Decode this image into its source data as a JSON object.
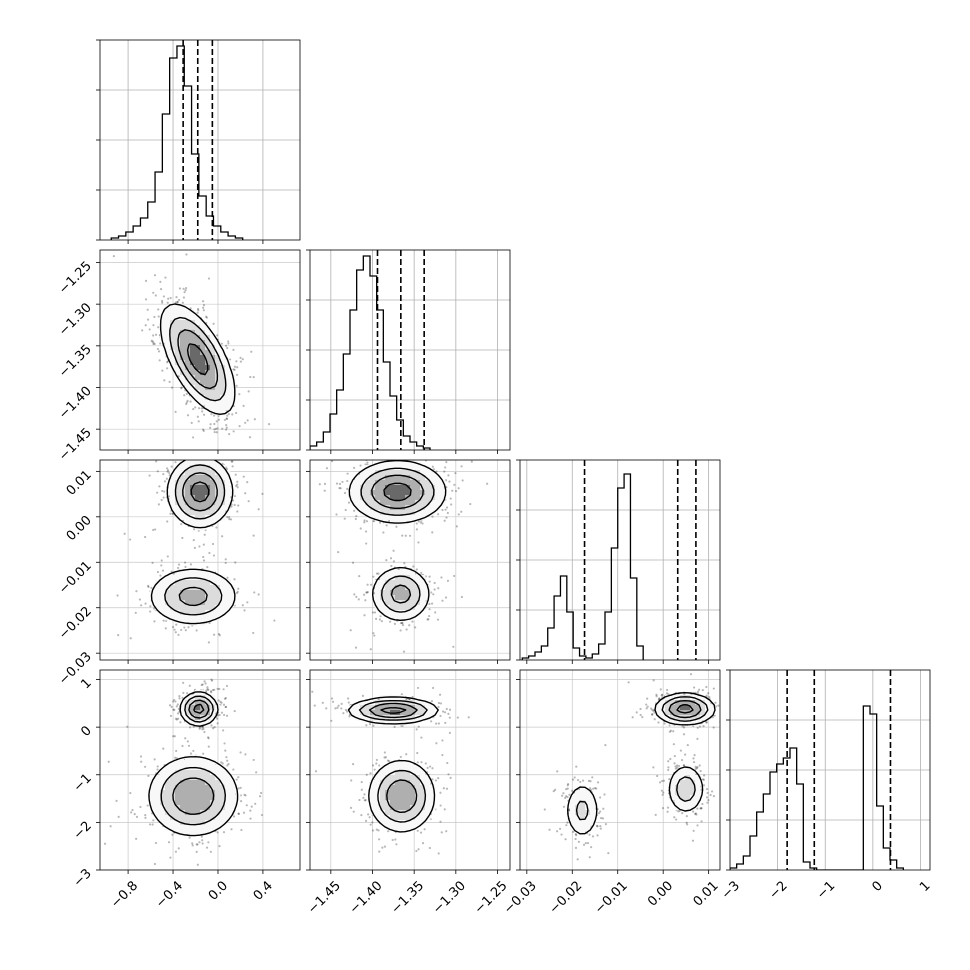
{
  "chart_data": {
    "type": "corner",
    "parameters": [
      {
        "name": "",
        "range": [
          -1.05,
          0.73
        ],
        "ticks": [
          -0.8,
          -0.4,
          0.0,
          0.4
        ],
        "tick_labels": [
          "−0.8",
          "−0.4",
          "0.0",
          "0.4"
        ]
      },
      {
        "name": "",
        "range": [
          -1.475,
          -1.235
        ],
        "ticks": [
          -1.45,
          -1.4,
          -1.35,
          -1.3,
          -1.25
        ],
        "tick_labels": [
          "−1.45",
          "−1.40",
          "−1.35",
          "−1.30",
          "−1.25"
        ]
      },
      {
        "name": "",
        "range": [
          -0.0315,
          0.0125
        ],
        "ticks": [
          -0.03,
          -0.02,
          -0.01,
          0.0,
          0.01
        ],
        "tick_labels": [
          "−0.03",
          "−0.02",
          "−0.01",
          "0.00",
          "0.01"
        ]
      },
      {
        "name": "",
        "range": [
          -3.0,
          1.2
        ],
        "ticks": [
          -3,
          -2,
          -1,
          0,
          1
        ],
        "tick_labels": [
          "−3",
          "−2",
          "−1",
          "0",
          "1"
        ]
      }
    ],
    "histograms": [
      {
        "param": 0,
        "edges_start": -0.95,
        "bin_width": 0.065,
        "counts": [
          0.01,
          0.02,
          0.04,
          0.07,
          0.11,
          0.19,
          0.34,
          0.63,
          0.91,
          0.97,
          0.77,
          0.43,
          0.22,
          0.12,
          0.07,
          0.04,
          0.02,
          0.01
        ],
        "quantiles": [
          -0.31,
          -0.18,
          -0.05
        ]
      },
      {
        "param": 1,
        "edges_start": -1.475,
        "bin_width": 0.008,
        "counts": [
          0.02,
          0.04,
          0.09,
          0.18,
          0.3,
          0.48,
          0.7,
          0.9,
          0.97,
          0.87,
          0.7,
          0.44,
          0.27,
          0.15,
          0.07,
          0.04,
          0.02,
          0.01
        ],
        "quantiles": [
          -1.394,
          -1.366,
          -1.338
        ]
      },
      {
        "param": 2,
        "edges_start": -0.031,
        "bin_width": 0.0014,
        "counts": [
          0.01,
          0.02,
          0.04,
          0.07,
          0.16,
          0.32,
          0.42,
          0.24,
          0.06,
          0.02,
          0.01,
          0.03,
          0.08,
          0.24,
          0.56,
          0.86,
          0.93,
          0.41,
          0.07
        ],
        "quantiles": [
          -0.0173,
          0.0032,
          0.0072
        ]
      },
      {
        "param": 3,
        "edges_start": -3.0,
        "bin_width": 0.14,
        "counts": [
          0.01,
          0.03,
          0.07,
          0.17,
          0.29,
          0.38,
          0.49,
          0.53,
          0.56,
          0.61,
          0.43,
          0.04,
          0.01,
          0.0,
          0.0,
          0.0,
          0.0,
          0.0,
          0.0,
          0.0,
          0.82,
          0.78,
          0.32,
          0.11,
          0.05,
          0.01
        ],
        "quantiles": [
          -1.8,
          -1.23,
          0.37
        ]
      }
    ],
    "density_2d": [
      {
        "x_param": 0,
        "y_param": 1,
        "modes": [
          {
            "cx": -0.18,
            "cy": -1.366,
            "sx": 0.16,
            "sy": 0.032,
            "rho": -0.62,
            "weight": 1.0
          }
        ]
      },
      {
        "x_param": 0,
        "y_param": 2,
        "modes": [
          {
            "cx": -0.16,
            "cy": 0.0055,
            "sx": 0.14,
            "sy": 0.0038,
            "rho": 0.0,
            "weight": 0.6
          },
          {
            "cx": -0.22,
            "cy": -0.0175,
            "sx": 0.2,
            "sy": 0.0032,
            "rho": 0.0,
            "weight": 0.4
          }
        ]
      },
      {
        "x_param": 0,
        "y_param": 3,
        "modes": [
          {
            "cx": -0.17,
            "cy": 0.38,
            "sx": 0.08,
            "sy": 0.17,
            "rho": 0.0,
            "weight": 0.55
          },
          {
            "cx": -0.22,
            "cy": -1.45,
            "sx": 0.2,
            "sy": 0.42,
            "rho": 0.0,
            "weight": 0.45
          }
        ]
      },
      {
        "x_param": 1,
        "y_param": 2,
        "modes": [
          {
            "cx": -1.37,
            "cy": 0.0055,
            "sx": 0.028,
            "sy": 0.0033,
            "rho": 0.0,
            "weight": 0.6
          },
          {
            "cx": -1.366,
            "cy": -0.017,
            "sx": 0.018,
            "sy": 0.0031,
            "rho": 0.0,
            "weight": 0.4
          }
        ]
      },
      {
        "x_param": 1,
        "y_param": 3,
        "modes": [
          {
            "cx": -1.375,
            "cy": 0.35,
            "sx": 0.026,
            "sy": 0.13,
            "rho": 0.0,
            "weight": 0.55
          },
          {
            "cx": -1.365,
            "cy": -1.45,
            "sx": 0.02,
            "sy": 0.38,
            "rho": 0.0,
            "weight": 0.45
          }
        ]
      },
      {
        "x_param": 2,
        "y_param": 3,
        "modes": [
          {
            "cx": 0.0048,
            "cy": 0.38,
            "sx": 0.0032,
            "sy": 0.16,
            "rho": 0.0,
            "weight": 0.55
          },
          {
            "cx": 0.005,
            "cy": -1.3,
            "sx": 0.0022,
            "sy": 0.28,
            "rho": 0.0,
            "weight": 0.25
          },
          {
            "cx": -0.0178,
            "cy": -1.75,
            "sx": 0.0021,
            "sy": 0.33,
            "rho": 0.0,
            "weight": 0.2
          }
        ]
      }
    ],
    "contour_levels": [
      0.12,
      0.3,
      0.55,
      0.85
    ],
    "grid": true,
    "legend": "none"
  }
}
